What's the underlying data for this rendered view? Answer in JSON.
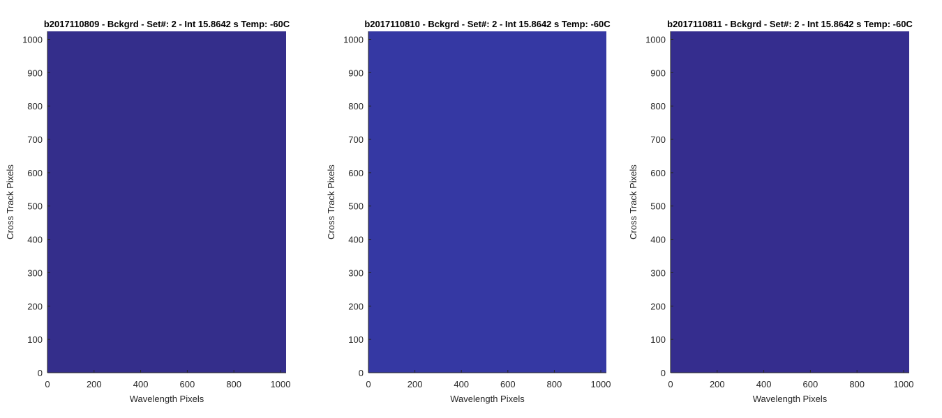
{
  "chart_data": [
    {
      "type": "heatmap",
      "title": "b2017110809 - Bckgrd - Set#: 2 - Int 15.8642 s Temp: -60C",
      "xlabel": "Wavelength Pixels",
      "ylabel": "Cross Track Pixels",
      "xlim": [
        0,
        1024
      ],
      "ylim": [
        0,
        1024
      ],
      "xticks": [
        0,
        200,
        400,
        600,
        800,
        1000
      ],
      "yticks": [
        0,
        100,
        200,
        300,
        400,
        500,
        600,
        700,
        800,
        900,
        1000
      ],
      "fill_color": "#342e8b",
      "grid": false
    },
    {
      "type": "heatmap",
      "title": "b2017110810 - Bckgrd - Set#: 2 - Int 15.8642 s Temp: -60C",
      "xlabel": "Wavelength Pixels",
      "ylabel": "Cross Track Pixels",
      "xlim": [
        0,
        1024
      ],
      "ylim": [
        0,
        1024
      ],
      "xticks": [
        0,
        200,
        400,
        600,
        800,
        1000
      ],
      "yticks": [
        0,
        100,
        200,
        300,
        400,
        500,
        600,
        700,
        800,
        900,
        1000
      ],
      "fill_color": "#3538a3",
      "grid": false
    },
    {
      "type": "heatmap",
      "title": "b2017110811 - Bckgrd - Set#: 2 - Int 15.8642 s Temp: -60C",
      "xlabel": "Wavelength Pixels",
      "ylabel": "Cross Track Pixels",
      "xlim": [
        0,
        1024
      ],
      "ylim": [
        0,
        1024
      ],
      "xticks": [
        0,
        200,
        400,
        600,
        800,
        1000
      ],
      "yticks": [
        0,
        100,
        200,
        300,
        400,
        500,
        600,
        700,
        800,
        900,
        1000
      ],
      "fill_color": "#352d8e",
      "grid": false
    }
  ]
}
